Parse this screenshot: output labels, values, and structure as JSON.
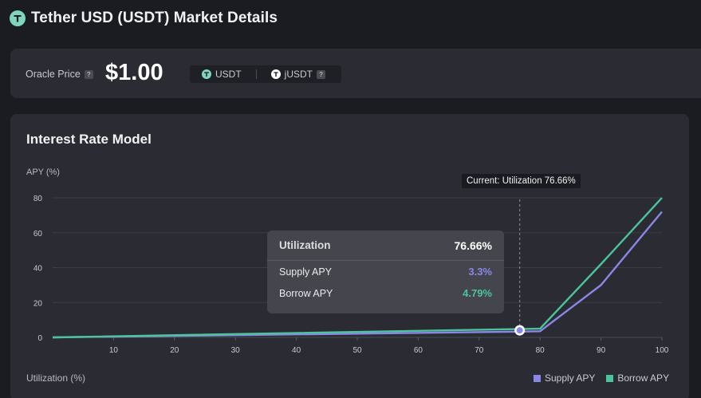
{
  "header": {
    "title": "Tether USD (USDT) Market Details",
    "icon": "tether-icon"
  },
  "price_card": {
    "oracle_label": "Oracle Price",
    "help_mark": "?",
    "oracle_value": "$1.00",
    "token_1": "USDT",
    "token_2": "jUSDT"
  },
  "chart_card": {
    "title": "Interest Rate Model",
    "current_tag": "Current: Utilization 76.66%",
    "tooltip": {
      "head_label": "Utilization",
      "head_value": "76.66%",
      "supply_label": "Supply APY",
      "supply_value": "3.3%",
      "borrow_label": "Borrow APY",
      "borrow_value": "4.79%"
    },
    "legend": {
      "supply": "Supply APY",
      "borrow": "Borrow APY"
    }
  },
  "colors": {
    "supply": "#8a87e6",
    "borrow": "#4cc49b",
    "background": "#1b1c21",
    "card": "#2b2c33"
  },
  "chart_data": {
    "type": "line",
    "xlabel": "Utilization (%)",
    "ylabel": "APY (%)",
    "xlim": [
      0,
      100
    ],
    "ylim": [
      0,
      80
    ],
    "xticks": [
      10,
      20,
      30,
      40,
      50,
      60,
      70,
      80,
      90,
      100
    ],
    "yticks": [
      0,
      20,
      40,
      60,
      80
    ],
    "grid": true,
    "legend_position": "bottom-right",
    "current_utilization": 76.66,
    "series": [
      {
        "name": "Supply APY",
        "x": [
          0,
          76.66,
          80,
          90,
          100
        ],
        "y": [
          0,
          3.3,
          3.5,
          30,
          72
        ]
      },
      {
        "name": "Borrow APY",
        "x": [
          0,
          76.66,
          80,
          90,
          100
        ],
        "y": [
          0,
          4.79,
          5,
          42,
          80
        ]
      }
    ]
  }
}
